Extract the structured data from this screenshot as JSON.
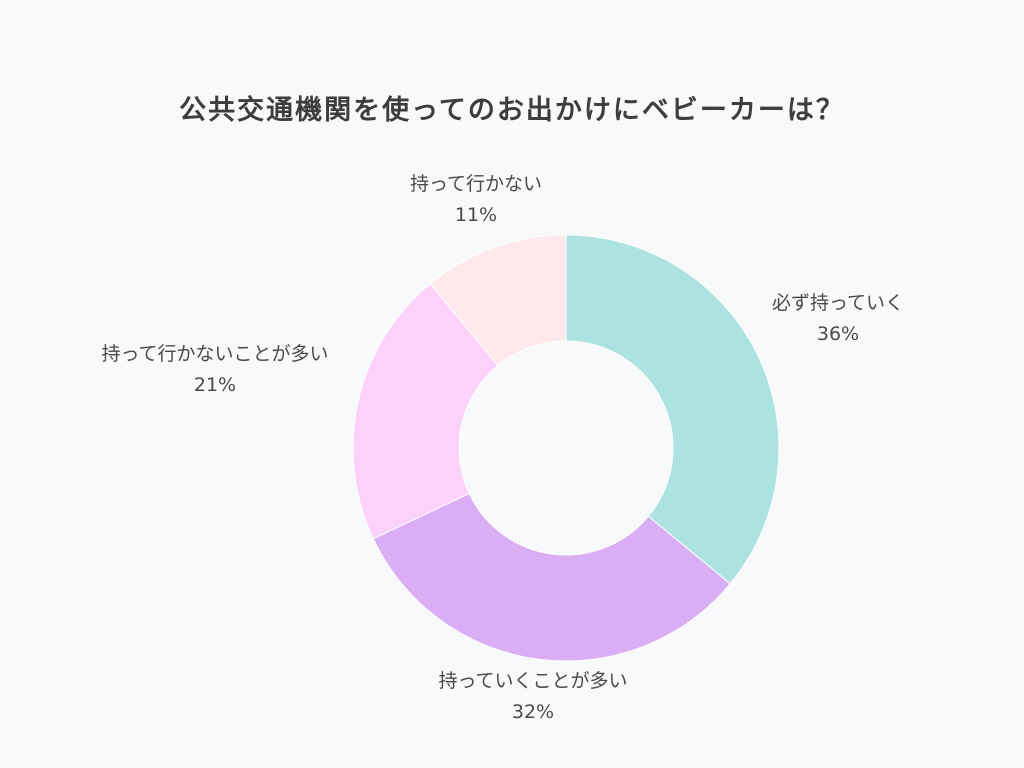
{
  "chart_data": {
    "type": "pie",
    "title": "公共交通機関を使ってのお出かけにベビーカーは？",
    "donut": true,
    "categories": [
      "必ず持っていく",
      "持っていくことが多い",
      "持って行かないことが多い",
      "持って行かない"
    ],
    "values": [
      36,
      32,
      21,
      11
    ],
    "value_labels": [
      "36%",
      "32%",
      "21%",
      "11%"
    ],
    "colors": [
      "#ace3e1",
      "#d9aef5",
      "#fcd1fc",
      "#fde9ec"
    ]
  }
}
